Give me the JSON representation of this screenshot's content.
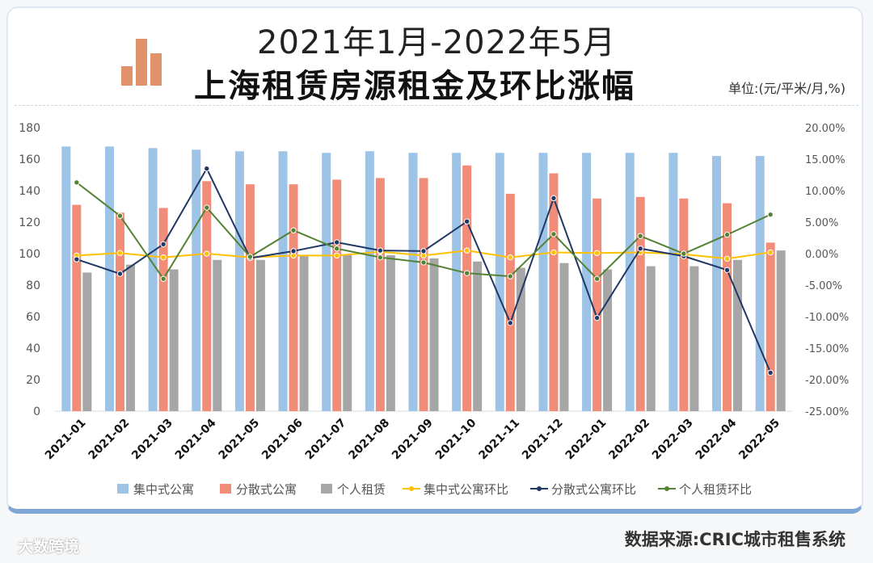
{
  "header": {
    "title_line1": "2021年1月-2022年5月",
    "title_line2": "上海租赁房源租金及环比涨幅",
    "unit": "单位:(元/平米/月,%)"
  },
  "source": "数据来源:CRIC城市租售系统",
  "watermark": "大数跨境",
  "colors": {
    "bar_central": "#9dc3e6",
    "bar_scattered": "#f08c78",
    "bar_personal": "#a6a6a6",
    "line_central": "#ffc000",
    "line_scattered": "#1f3864",
    "line_personal": "#548235"
  },
  "chart_data": {
    "type": "bar+line",
    "categories": [
      "2021-01",
      "2021-02",
      "2021-03",
      "2021-04",
      "2021-05",
      "2021-06",
      "2021-07",
      "2021-08",
      "2021-09",
      "2021-10",
      "2021-11",
      "2021-12",
      "2022-01",
      "2022-02",
      "2022-03",
      "2022-04",
      "2022-05"
    ],
    "left_axis": {
      "min": 0,
      "max": 180,
      "step": 20,
      "ticks": [
        "0",
        "20",
        "40",
        "60",
        "80",
        "100",
        "120",
        "140",
        "160",
        "180"
      ]
    },
    "right_axis": {
      "min": -25,
      "max": 20,
      "step": 5,
      "ticks": [
        "-25.00%",
        "-20.00%",
        "-15.00%",
        "-10.00%",
        "-5.00%",
        "0.00%",
        "5.00%",
        "10.00%",
        "15.00%",
        "20.00%"
      ]
    },
    "bar_series": [
      {
        "name": "集中式公寓",
        "values": [
          168,
          168,
          167,
          166,
          165,
          165,
          164,
          165,
          164,
          164,
          164,
          164,
          164,
          164,
          164,
          162,
          162
        ]
      },
      {
        "name": "分散式公寓",
        "values": [
          131,
          126,
          129,
          146,
          144,
          144,
          147,
          148,
          148,
          156,
          138,
          151,
          135,
          136,
          135,
          132,
          107
        ]
      },
      {
        "name": "个人租赁",
        "values": [
          88,
          93,
          90,
          96,
          96,
          99,
          99,
          99,
          97,
          95,
          91,
          94,
          90,
          92,
          92,
          96,
          102
        ]
      }
    ],
    "line_series": [
      {
        "name": "集中式公寓环比",
        "values": [
          -0.3,
          0.1,
          -0.6,
          0.0,
          -0.6,
          -0.3,
          -0.3,
          0.3,
          -0.3,
          0.5,
          -0.6,
          0.2,
          0.1,
          0.2,
          -0.1,
          -0.8,
          0.2
        ]
      },
      {
        "name": "分散式公寓环比",
        "values": [
          -0.9,
          -3.2,
          1.5,
          13.5,
          -0.7,
          0.4,
          1.8,
          0.5,
          0.4,
          5.1,
          -11.0,
          8.8,
          -10.2,
          0.8,
          -0.4,
          -2.6,
          -18.9
        ]
      },
      {
        "name": "个人租赁环比",
        "values": [
          11.3,
          6.0,
          -4.0,
          7.3,
          -0.5,
          3.7,
          0.8,
          -0.6,
          -1.4,
          -3.1,
          -3.6,
          3.1,
          -4.0,
          2.8,
          0.0,
          3.0,
          6.2
        ]
      }
    ]
  }
}
